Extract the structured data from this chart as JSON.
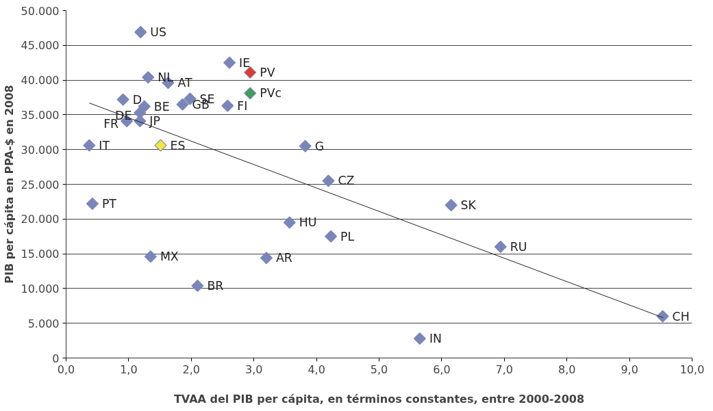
{
  "chart_data": {
    "type": "scatter",
    "xlabel": "TVAA del PIB per cápita, en términos constantes, entre 2000-2008",
    "ylabel": "PIB per cápita en PPA-$ en 2008",
    "xlim": [
      0,
      10
    ],
    "ylim": [
      0,
      50000
    ],
    "xticks": [
      {
        "value": 0,
        "label": "0,0"
      },
      {
        "value": 1,
        "label": "1,0"
      },
      {
        "value": 2,
        "label": "2,0"
      },
      {
        "value": 3,
        "label": "3,0"
      },
      {
        "value": 4,
        "label": "4,0"
      },
      {
        "value": 5,
        "label": "5,0"
      },
      {
        "value": 6,
        "label": "6,0"
      },
      {
        "value": 7,
        "label": "7,0"
      },
      {
        "value": 8,
        "label": "8,0"
      },
      {
        "value": 9,
        "label": "9,0"
      },
      {
        "value": 10,
        "label": "10,0"
      }
    ],
    "yticks": [
      0,
      {
        "value": 5000,
        "label": "5.000"
      },
      {
        "value": 10000,
        "label": "10.000"
      },
      {
        "value": 15000,
        "label": "15.000"
      },
      {
        "value": 20000,
        "label": "20.000"
      },
      {
        "value": 25000,
        "label": "25.000"
      },
      {
        "value": 30000,
        "label": "30.000"
      },
      {
        "value": 35000,
        "label": "35.000"
      },
      {
        "value": 40000,
        "label": "40.000"
      },
      {
        "value": 45000,
        "label": "45.000"
      },
      {
        "value": 50000,
        "label": "50.000"
      }
    ],
    "grid": "y",
    "marker": "diamond",
    "series": [
      {
        "x": [
          1.19,
          2.61,
          2.94,
          1.31,
          1.63,
          2.94,
          0.91,
          1.98,
          1.86,
          2.58,
          1.25,
          1.18,
          0.97,
          1.18,
          0.37,
          1.51,
          3.82,
          4.19,
          0.42,
          6.15,
          3.57,
          4.23,
          6.94,
          1.35,
          3.2,
          2.1,
          5.65,
          9.53
        ],
        "values": [
          46900,
          42500,
          41100,
          40400,
          39600,
          38100,
          37200,
          37300,
          36500,
          36300,
          36200,
          35300,
          34100,
          34100,
          30600,
          30600,
          30500,
          25500,
          22200,
          22000,
          19500,
          17500,
          16000,
          14600,
          14400,
          10400,
          2800,
          6000
        ],
        "colors": [
          "#7b86b8",
          "#7b86b8",
          "#e03a2e",
          "#7b86b8",
          "#7b86b8",
          "#3f9e5a",
          "#7b86b8",
          "#7b86b8",
          "#7b86b8",
          "#7b86b8",
          "#7b86b8",
          "#7b86b8",
          "#7b86b8",
          "#7b86b8",
          "#7b86b8",
          "#f5e642",
          "#7b86b8",
          "#7b86b8",
          "#7b86b8",
          "#7b86b8",
          "#7b86b8",
          "#7b86b8",
          "#7b86b8",
          "#7b86b8",
          "#7b86b8",
          "#7b86b8",
          "#7b86b8",
          "#7b86b8"
        ]
      },
      {
        "type": "line",
        "marker": "none",
        "color": "#222222",
        "x": [
          0.37,
          9.54
        ],
        "values": [
          36700,
          5800
        ]
      }
    ],
    "annotations": [
      {
        "text": "US",
        "x": 1.19,
        "y": 46900
      },
      {
        "text": "IE",
        "x": 2.61,
        "y": 42500
      },
      {
        "text": "PV",
        "x": 2.94,
        "y": 41100
      },
      {
        "text": "NL",
        "x": 1.31,
        "y": 40400
      },
      {
        "text": "AT",
        "x": 1.63,
        "y": 39600
      },
      {
        "text": "PVc",
        "x": 2.94,
        "y": 38100
      },
      {
        "text": "D",
        "x": 0.91,
        "y": 37200
      },
      {
        "text": "SE",
        "x": 1.98,
        "y": 37300
      },
      {
        "text": "GB",
        "x": 1.86,
        "y": 36500
      },
      {
        "text": "FI",
        "x": 2.58,
        "y": 36300
      },
      {
        "text": "BE",
        "x": 1.25,
        "y": 36200
      },
      {
        "text": "DE",
        "x": 1.18,
        "y": 35300
      },
      {
        "text": "FR",
        "x": 0.97,
        "y": 34100
      },
      {
        "text": "JP",
        "x": 1.18,
        "y": 34100
      },
      {
        "text": "IT",
        "x": 0.37,
        "y": 30600
      },
      {
        "text": "ES",
        "x": 1.51,
        "y": 30600
      },
      {
        "text": "G",
        "x": 3.82,
        "y": 30500
      },
      {
        "text": "CZ",
        "x": 4.19,
        "y": 25500
      },
      {
        "text": "PT",
        "x": 0.42,
        "y": 22200
      },
      {
        "text": "SK",
        "x": 6.15,
        "y": 22000
      },
      {
        "text": "HU",
        "x": 3.57,
        "y": 19500
      },
      {
        "text": "PL",
        "x": 4.23,
        "y": 17500
      },
      {
        "text": "RU",
        "x": 6.94,
        "y": 16000
      },
      {
        "text": "MX",
        "x": 1.35,
        "y": 14600
      },
      {
        "text": "AR",
        "x": 3.2,
        "y": 14400
      },
      {
        "text": "BR",
        "x": 2.1,
        "y": 10400
      },
      {
        "text": "IN",
        "x": 5.65,
        "y": 2800
      },
      {
        "text": "CH",
        "x": 9.53,
        "y": 6000
      }
    ]
  }
}
